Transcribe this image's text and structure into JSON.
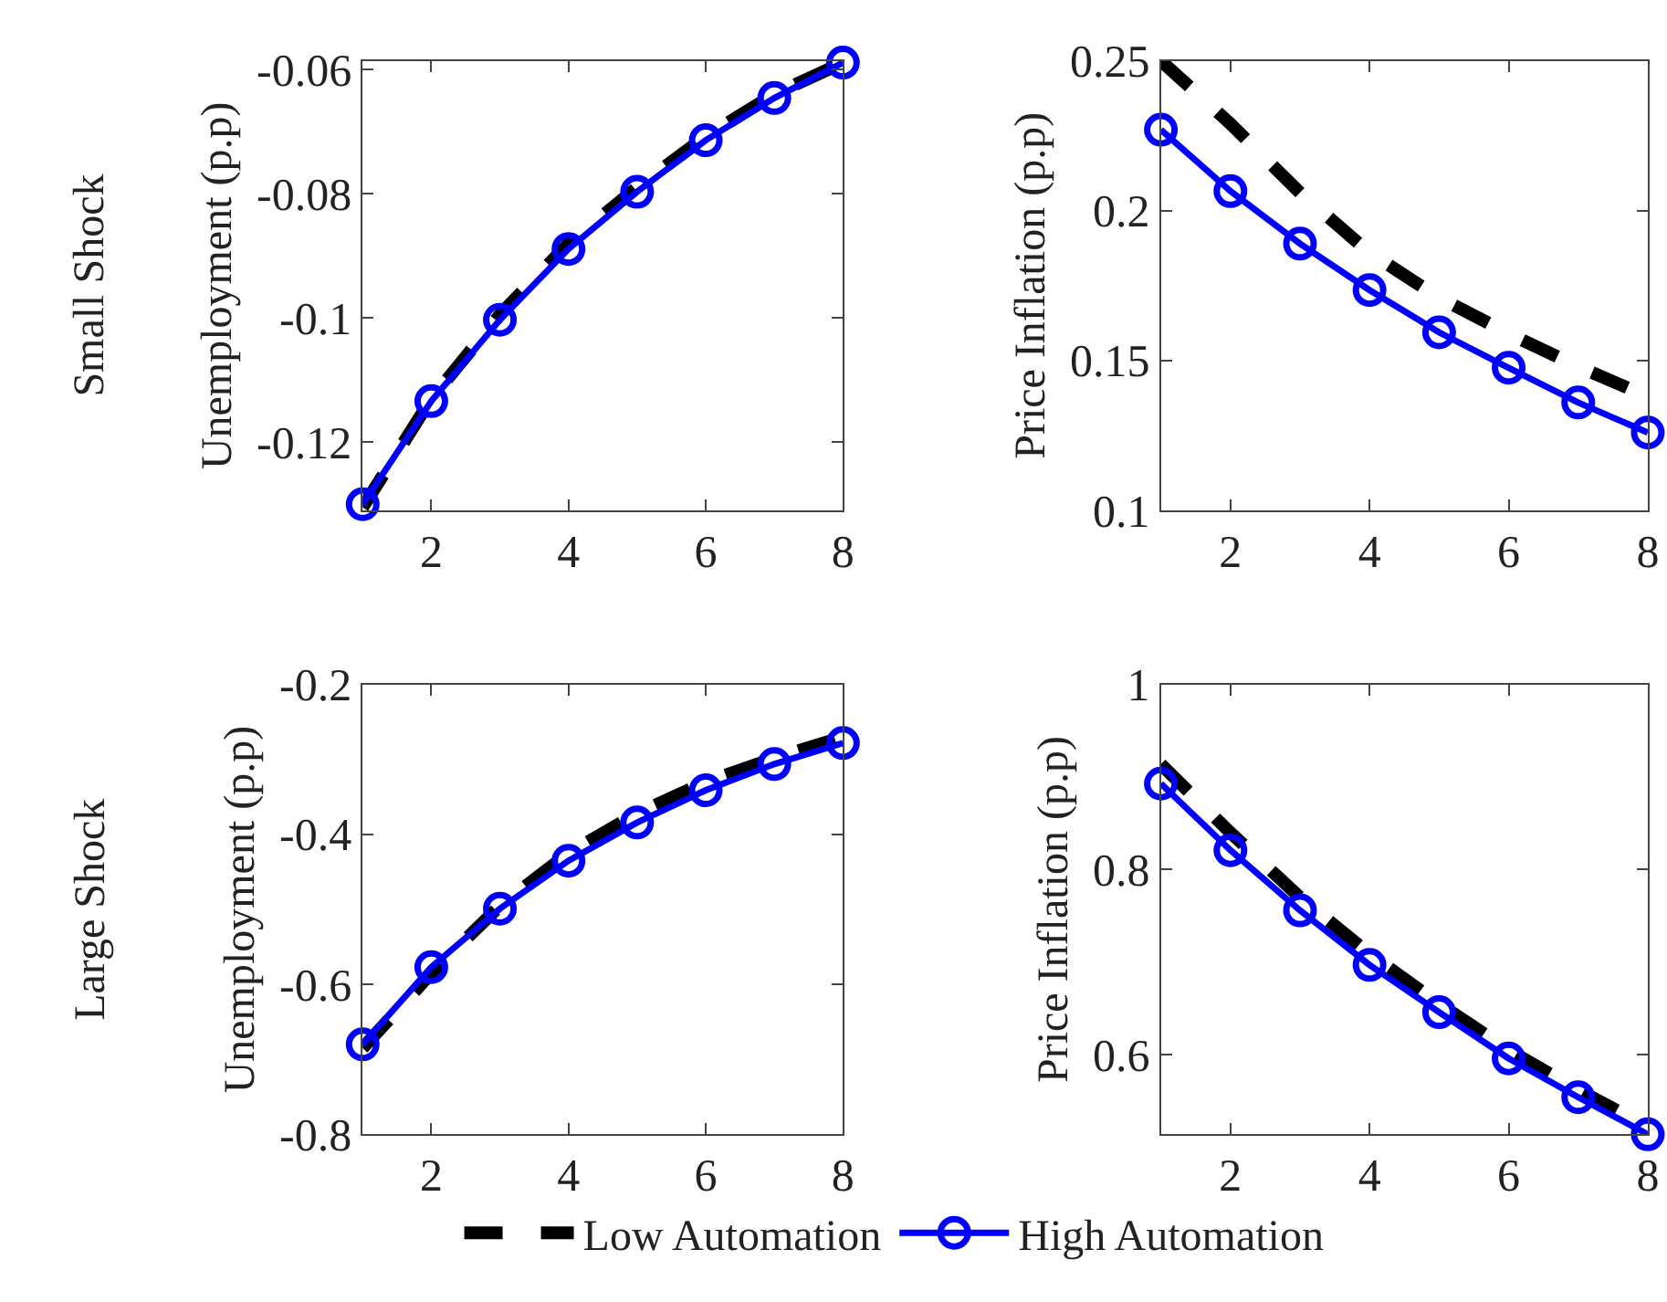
{
  "chart_data": [
    {
      "type": "line",
      "ylabel": "Unemployment (p.p)",
      "annotations": [
        "Small Shock"
      ],
      "x": [
        1,
        2,
        3,
        4,
        5,
        6,
        7,
        8
      ],
      "xlim": [
        1,
        8
      ],
      "xticks": [
        2,
        4,
        6,
        8
      ],
      "ylim": [
        -0.131,
        -0.0586
      ],
      "yticks": [
        -0.12,
        -0.1,
        -0.08,
        -0.06
      ],
      "legend": "bottom",
      "series": [
        {
          "name": "Low Automation",
          "color": "#000000",
          "line_style": "dashed",
          "marker": "none",
          "values": [
            -0.1305,
            -0.113,
            -0.0995,
            -0.088,
            -0.079,
            -0.0708,
            -0.064,
            -0.0589
          ]
        },
        {
          "name": "High Automation",
          "color": "#0000ff",
          "line_style": "solid",
          "marker": "circle",
          "values": [
            -0.13,
            -0.1134,
            -0.1003,
            -0.0889,
            -0.0797,
            -0.0714,
            -0.0646,
            -0.0589
          ]
        }
      ]
    },
    {
      "type": "line",
      "ylabel": "Price Inflation (p.p)",
      "x": [
        1,
        2,
        3,
        4,
        5,
        6,
        7,
        8
      ],
      "xlim": [
        1,
        8
      ],
      "xticks": [
        2,
        4,
        6,
        8
      ],
      "ylim": [
        0.1,
        0.25
      ],
      "yticks": [
        0.1,
        0.15,
        0.2,
        0.25
      ],
      "series": [
        {
          "color": "#000000",
          "line_style": "dashed",
          "marker": "none",
          "values": [
            0.25,
            0.229,
            0.206,
            0.186,
            0.171,
            0.159,
            0.148,
            0.138
          ]
        },
        {
          "color": "#0000ff",
          "line_style": "solid",
          "marker": "circle",
          "values": [
            0.227,
            0.2065,
            0.189,
            0.1735,
            0.1594,
            0.1476,
            0.136,
            0.126
          ]
        }
      ]
    },
    {
      "type": "line",
      "ylabel": "Unemployment (p.p)",
      "annotations": [
        "Large Shock"
      ],
      "x": [
        1,
        2,
        3,
        4,
        5,
        6,
        7,
        8
      ],
      "xlim": [
        1,
        8
      ],
      "xticks": [
        2,
        4,
        6,
        8
      ],
      "ylim": [
        -0.8,
        -0.2
      ],
      "yticks": [
        -0.8,
        -0.6,
        -0.4,
        -0.2
      ],
      "series": [
        {
          "color": "#000000",
          "line_style": "dashed",
          "marker": "none",
          "values": [
            -0.685,
            -0.585,
            -0.495,
            -0.425,
            -0.372,
            -0.33,
            -0.298,
            -0.27
          ]
        },
        {
          "color": "#0000ff",
          "line_style": "solid",
          "marker": "circle",
          "values": [
            -0.68,
            -0.577,
            -0.499,
            -0.435,
            -0.384,
            -0.341,
            -0.306,
            -0.278
          ]
        }
      ]
    },
    {
      "type": "line",
      "ylabel": "Price Inflation (p.p)",
      "x": [
        1,
        2,
        3,
        4,
        5,
        6,
        7,
        8
      ],
      "xlim": [
        1,
        8
      ],
      "xticks": [
        2,
        4,
        6,
        8
      ],
      "ylim": [
        0.514,
        1
      ],
      "yticks": [
        0.6,
        0.8,
        1
      ],
      "series": [
        {
          "color": "#000000",
          "line_style": "dashed",
          "marker": "none",
          "values": [
            0.914,
            0.84,
            0.77,
            0.709,
            0.655,
            0.605,
            0.562,
            0.522
          ]
        },
        {
          "color": "#0000ff",
          "line_style": "solid",
          "marker": "circle",
          "values": [
            0.893,
            0.821,
            0.756,
            0.697,
            0.646,
            0.596,
            0.554,
            0.514
          ]
        }
      ]
    }
  ]
}
